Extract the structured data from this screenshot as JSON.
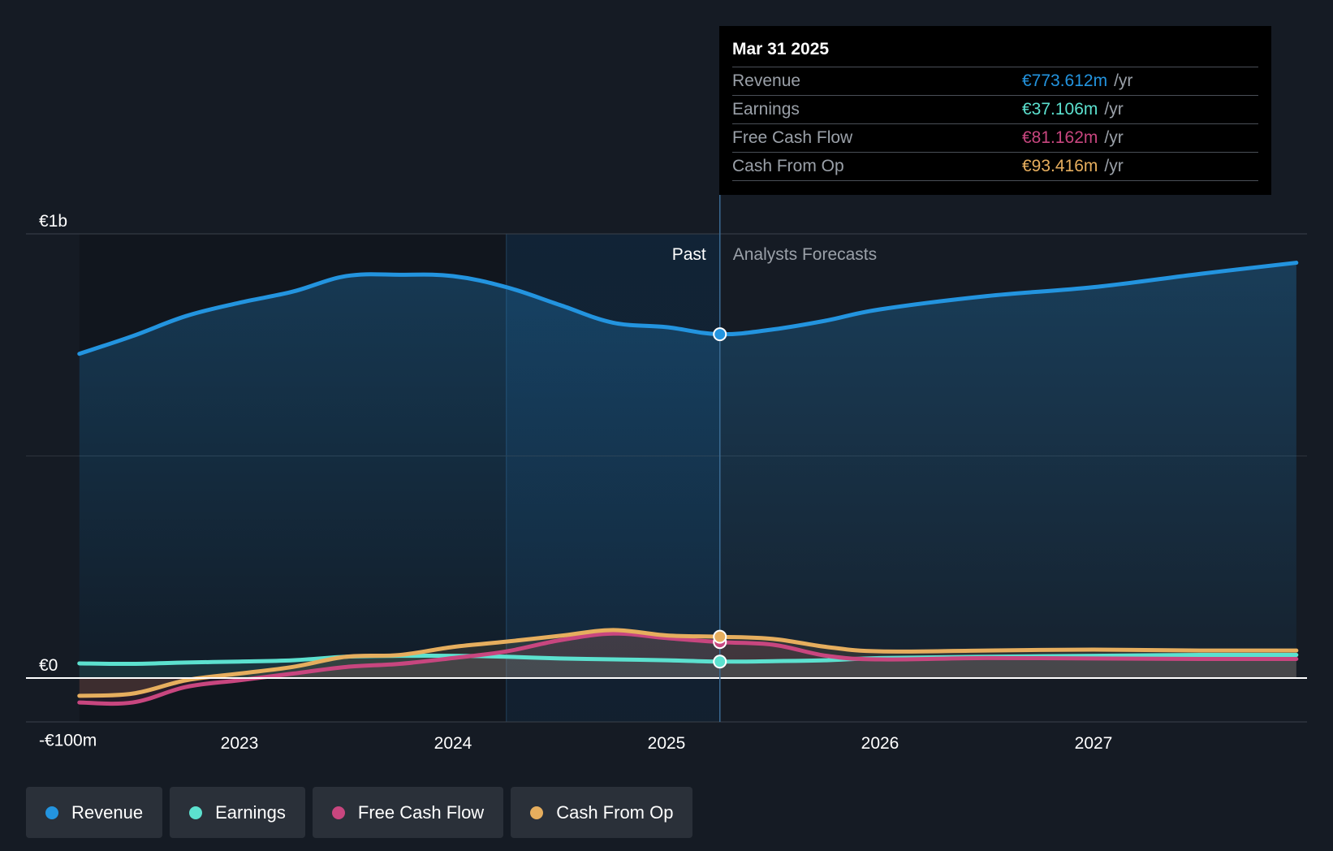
{
  "chart_data": {
    "type": "line",
    "x_ticks": [
      "2023",
      "2024",
      "2025",
      "2026",
      "2027"
    ],
    "y_ticks": [
      {
        "value": 1000,
        "label": "€1b"
      },
      {
        "value": 0,
        "label": "€0"
      },
      {
        "value": -100,
        "label": "-€100m"
      }
    ],
    "ylim": [
      -100,
      1000
    ],
    "xlim": [
      2022.25,
      2027.95
    ],
    "past_label": "Past",
    "forecast_label": "Analysts Forecasts",
    "highlight_x": 2025.25,
    "past_shade_start": 2024.25,
    "colors": {
      "revenue": "#2394df",
      "earnings": "#5ce1cf",
      "fcf": "#c8467f",
      "cfo": "#e6ae5e",
      "background": "#151b24"
    },
    "series": [
      {
        "key": "revenue",
        "name": "Revenue",
        "points": [
          [
            2022.25,
            730
          ],
          [
            2022.5,
            770
          ],
          [
            2022.75,
            815
          ],
          [
            2023.0,
            845
          ],
          [
            2023.25,
            870
          ],
          [
            2023.5,
            905
          ],
          [
            2023.75,
            908
          ],
          [
            2024.0,
            905
          ],
          [
            2024.25,
            880
          ],
          [
            2024.5,
            840
          ],
          [
            2024.75,
            800
          ],
          [
            2025.0,
            790
          ],
          [
            2025.25,
            774
          ],
          [
            2025.5,
            785
          ],
          [
            2025.75,
            805
          ],
          [
            2026.0,
            830
          ],
          [
            2026.5,
            860
          ],
          [
            2027.0,
            880
          ],
          [
            2027.5,
            910
          ],
          [
            2027.95,
            935
          ]
        ]
      },
      {
        "key": "earnings",
        "name": "Earnings",
        "points": [
          [
            2022.25,
            33
          ],
          [
            2022.5,
            32
          ],
          [
            2022.75,
            35
          ],
          [
            2023.0,
            37
          ],
          [
            2023.25,
            40
          ],
          [
            2023.5,
            48
          ],
          [
            2023.75,
            50
          ],
          [
            2024.0,
            50
          ],
          [
            2024.25,
            48
          ],
          [
            2024.5,
            44
          ],
          [
            2024.75,
            42
          ],
          [
            2025.0,
            40
          ],
          [
            2025.25,
            37
          ],
          [
            2025.5,
            38
          ],
          [
            2025.75,
            40
          ],
          [
            2026.0,
            45
          ],
          [
            2026.5,
            48
          ],
          [
            2027.0,
            50
          ],
          [
            2027.5,
            52
          ],
          [
            2027.95,
            52
          ]
        ]
      },
      {
        "key": "fcf",
        "name": "Free Cash Flow",
        "points": [
          [
            2022.25,
            -55
          ],
          [
            2022.5,
            -55
          ],
          [
            2022.75,
            -20
          ],
          [
            2023.0,
            -5
          ],
          [
            2023.25,
            10
          ],
          [
            2023.5,
            25
          ],
          [
            2023.75,
            32
          ],
          [
            2024.0,
            45
          ],
          [
            2024.25,
            60
          ],
          [
            2024.5,
            85
          ],
          [
            2024.75,
            100
          ],
          [
            2025.0,
            90
          ],
          [
            2025.25,
            81
          ],
          [
            2025.5,
            75
          ],
          [
            2025.75,
            50
          ],
          [
            2026.0,
            42
          ],
          [
            2026.5,
            45
          ],
          [
            2027.0,
            44
          ],
          [
            2027.5,
            43
          ],
          [
            2027.95,
            43
          ]
        ]
      },
      {
        "key": "cfo",
        "name": "Cash From Op",
        "points": [
          [
            2022.25,
            -40
          ],
          [
            2022.5,
            -35
          ],
          [
            2022.75,
            -5
          ],
          [
            2023.0,
            10
          ],
          [
            2023.25,
            25
          ],
          [
            2023.5,
            48
          ],
          [
            2023.75,
            52
          ],
          [
            2024.0,
            70
          ],
          [
            2024.25,
            82
          ],
          [
            2024.5,
            95
          ],
          [
            2024.75,
            108
          ],
          [
            2025.0,
            96
          ],
          [
            2025.25,
            93
          ],
          [
            2025.5,
            88
          ],
          [
            2025.75,
            70
          ],
          [
            2026.0,
            60
          ],
          [
            2026.5,
            62
          ],
          [
            2027.0,
            64
          ],
          [
            2027.5,
            62
          ],
          [
            2027.95,
            62
          ]
        ]
      }
    ],
    "tooltip": {
      "date": "Mar 31 2025",
      "rows": [
        {
          "label": "Revenue",
          "value": "€773.612m",
          "unit": "/yr"
        },
        {
          "label": "Earnings",
          "value": "€37.106m",
          "unit": "/yr"
        },
        {
          "label": "Free Cash Flow",
          "value": "€81.162m",
          "unit": "/yr"
        },
        {
          "label": "Cash From Op",
          "value": "€93.416m",
          "unit": "/yr"
        }
      ]
    },
    "legend": [
      "Revenue",
      "Earnings",
      "Free Cash Flow",
      "Cash From Op"
    ]
  }
}
